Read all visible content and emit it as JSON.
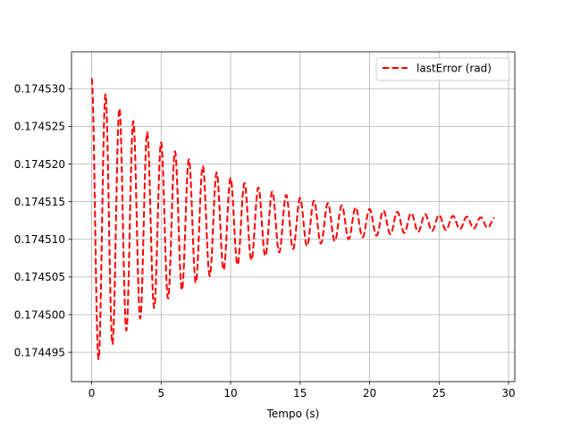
{
  "chart_data": {
    "type": "line",
    "title": "",
    "xlabel": "Tempo (s)",
    "ylabel": "",
    "xlim": [
      -1.45,
      30.45
    ],
    "ylim": [
      0.1744911,
      0.1745349
    ],
    "xticks": [
      0,
      5,
      10,
      15,
      20,
      25,
      30
    ],
    "xtick_labels": [
      "0",
      "5",
      "10",
      "15",
      "20",
      "25",
      "30"
    ],
    "yticks": [
      0.174495,
      0.1745,
      0.174505,
      0.17451,
      0.174515,
      0.17452,
      0.174525,
      0.17453
    ],
    "ytick_labels": [
      "0.174495",
      "0.174500",
      "0.174505",
      "0.174510",
      "0.174515",
      "0.174520",
      "0.174525",
      "0.174530"
    ],
    "grid": true,
    "legend_position": "upper right",
    "series": [
      {
        "name": "lastError (rad)",
        "color": "#ff0000",
        "style": "dashed",
        "model": {
          "description": "damped oscillation sampled from the plotted curve",
          "offset": 0.1745122,
          "amplitude": 1.92e-05,
          "period": 1.0,
          "decay_time": 8.5,
          "x_start": 0,
          "x_end": 29
        },
        "peaks": [
          {
            "x": 0.0,
            "y": 0.174533
          },
          {
            "x": 1.0,
            "y": 0.1745305
          },
          {
            "x": 2.0,
            "y": 0.174528
          },
          {
            "x": 3.0,
            "y": 0.1745259
          },
          {
            "x": 4.0,
            "y": 0.1745245
          },
          {
            "x": 5.0,
            "y": 0.174523
          },
          {
            "x": 6.0,
            "y": 0.174521
          },
          {
            "x": 7.0,
            "y": 0.17452
          },
          {
            "x": 8.0,
            "y": 0.174519
          },
          {
            "x": 9.0,
            "y": 0.1745183
          },
          {
            "x": 10.0,
            "y": 0.1745175
          },
          {
            "x": 11.0,
            "y": 0.174517
          },
          {
            "x": 12.0,
            "y": 0.1745162
          },
          {
            "x": 13.0,
            "y": 0.1745155
          },
          {
            "x": 14.0,
            "y": 0.174515
          },
          {
            "x": 15.0,
            "y": 0.174515
          },
          {
            "x": 20.0,
            "y": 0.1745135
          },
          {
            "x": 25.0,
            "y": 0.174513
          },
          {
            "x": 28.5,
            "y": 0.1745128
          }
        ],
        "troughs": [
          {
            "x": 0.5,
            "y": 0.174493
          },
          {
            "x": 1.5,
            "y": 0.1744952
          },
          {
            "x": 2.5,
            "y": 0.174497
          },
          {
            "x": 3.5,
            "y": 0.174499
          },
          {
            "x": 4.5,
            "y": 0.1745007
          },
          {
            "x": 5.5,
            "y": 0.1745025
          },
          {
            "x": 6.5,
            "y": 0.1745038
          },
          {
            "x": 7.5,
            "y": 0.174505
          },
          {
            "x": 8.5,
            "y": 0.174506
          },
          {
            "x": 9.5,
            "y": 0.174507
          },
          {
            "x": 10.5,
            "y": 0.1745075
          },
          {
            "x": 12.0,
            "y": 0.1745085
          },
          {
            "x": 14.0,
            "y": 0.174509
          },
          {
            "x": 16.0,
            "y": 0.1745095
          },
          {
            "x": 20.0,
            "y": 0.1745108
          },
          {
            "x": 25.0,
            "y": 0.1745115
          },
          {
            "x": 28.5,
            "y": 0.1745118
          }
        ]
      }
    ]
  }
}
